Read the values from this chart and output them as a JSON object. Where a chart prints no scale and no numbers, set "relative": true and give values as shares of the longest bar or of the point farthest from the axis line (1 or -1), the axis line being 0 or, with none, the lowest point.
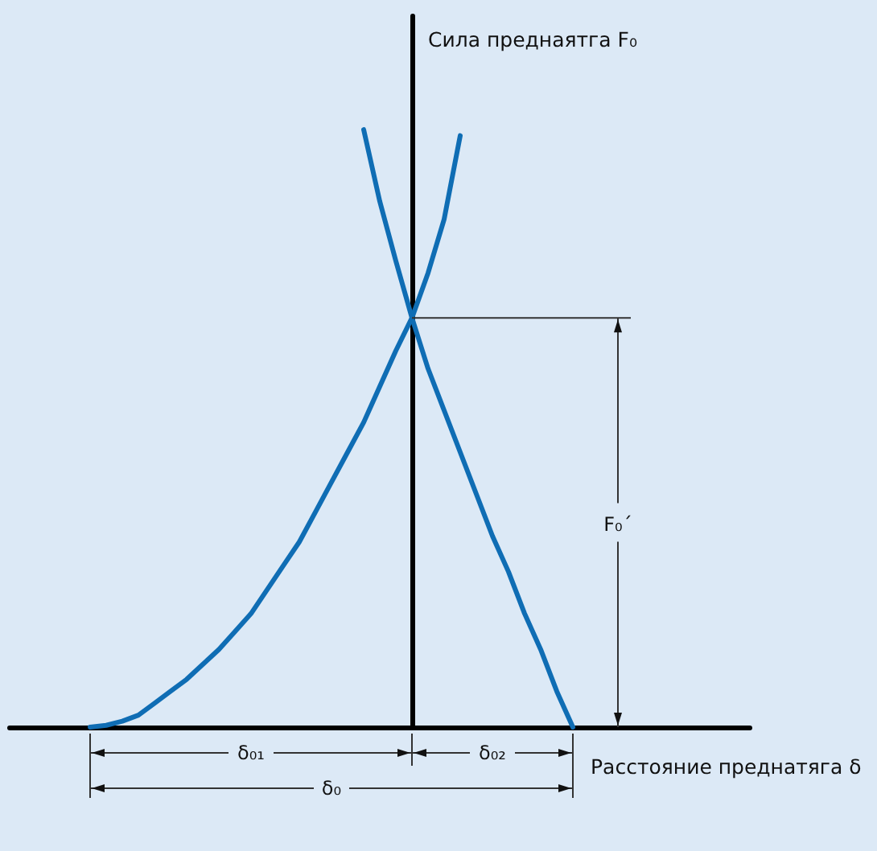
{
  "chart_data": {
    "type": "line",
    "relative": true,
    "xlabel": "Расстояние преднатяга δ",
    "ylabel": "Сила преднаятга F₀",
    "categories": [
      null,
      null,
      null,
      null,
      null,
      null,
      null,
      null,
      null,
      null,
      null,
      null,
      null,
      null,
      null,
      null,
      null,
      null,
      null,
      null,
      null,
      null,
      null,
      null,
      null,
      null,
      null,
      null,
      null,
      null,
      null,
      null,
      null,
      null,
      null,
      null,
      null,
      null,
      null,
      null,
      null,
      null,
      null,
      null,
      null,
      null,
      null
    ],
    "series": [
      {
        "color": "#0f6db4",
        "values": [
          null,
          null,
          null,
          null,
          null,
          0,
          0.003,
          0.01,
          0.02,
          0.04,
          0.06,
          0.08,
          0.105,
          0.13,
          0.16,
          0.19,
          0.23,
          0.27,
          0.31,
          0.36,
          0.41,
          0.46,
          0.51,
          0.57,
          0.63,
          0.685,
          0.76,
          0.85,
          0.99,
          null,
          null,
          null,
          null,
          null,
          null,
          null,
          null,
          null,
          null,
          null,
          null,
          null,
          null,
          null,
          null,
          null,
          null
        ]
      },
      {
        "color": "#0f6db4",
        "values": [
          null,
          null,
          null,
          null,
          null,
          null,
          null,
          null,
          null,
          null,
          null,
          null,
          null,
          null,
          null,
          null,
          null,
          null,
          null,
          null,
          null,
          null,
          1,
          0.88,
          0.78,
          0.685,
          0.6,
          0.53,
          0.46,
          0.39,
          0.32,
          0.26,
          0.19,
          0.13,
          0.06,
          0,
          null,
          null,
          null,
          null,
          null,
          null,
          null,
          null,
          null,
          null,
          null
        ]
      }
    ],
    "annotations": [
      "δ₀₁",
      "δ₀₂",
      "δ₀",
      "F₀´"
    ],
    "tick_labels": false,
    "grid": false,
    "marker": "none",
    "line_style": "solid"
  }
}
